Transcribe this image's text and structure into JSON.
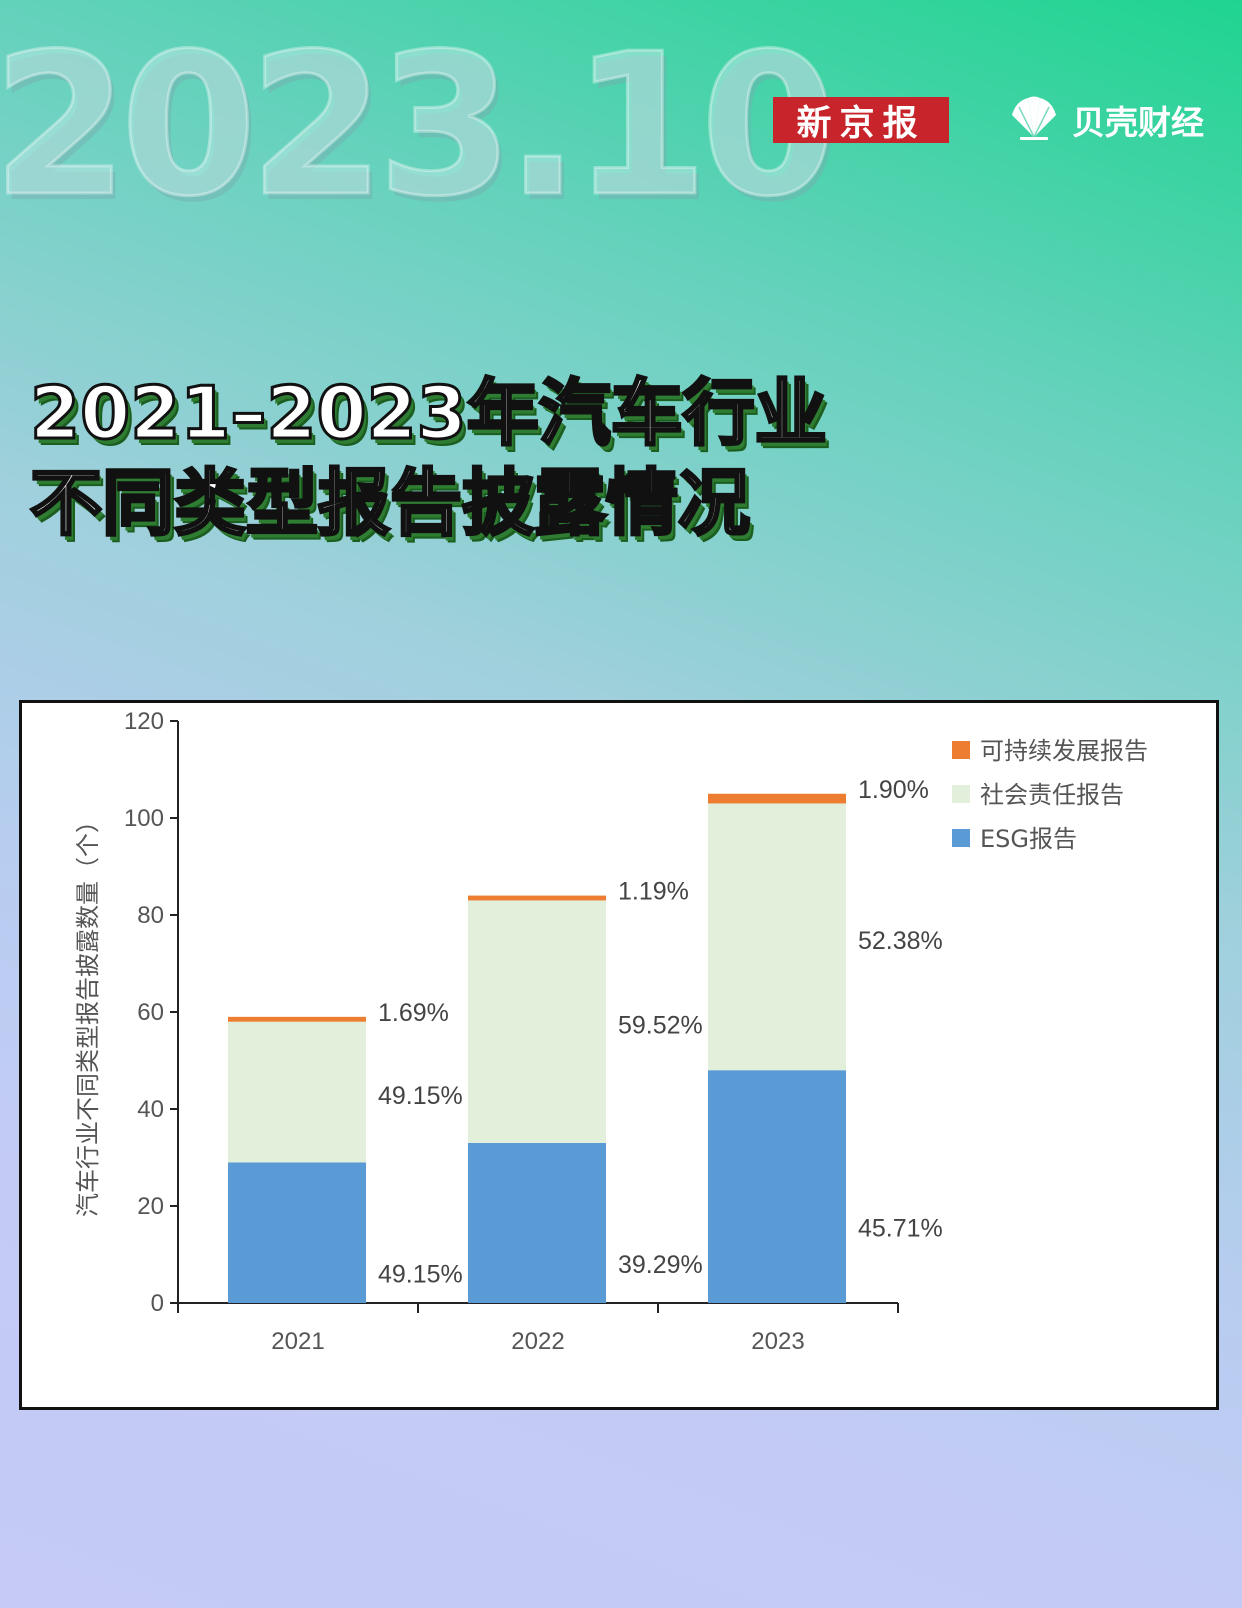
{
  "header": {
    "date_watermark": "2023.10",
    "logo_xinjingbao": "新京报",
    "logo_beike": "贝壳财经"
  },
  "title": {
    "line1": "2021–2023年汽车行业",
    "line2": "不同类型报告披露情况"
  },
  "colors": {
    "esg": "#5b9bd5",
    "social": "#e2efda",
    "sustainable": "#ed7d31"
  },
  "chart_data": {
    "type": "bar",
    "stacked": true,
    "categories": [
      "2021",
      "2022",
      "2023"
    ],
    "ylabel": "汽车行业不同类型报告披露数量（个）",
    "ylim": [
      0,
      120
    ],
    "yticks": [
      "0",
      "20",
      "40",
      "60",
      "80",
      "100",
      "120"
    ],
    "legend_position": "top-right",
    "series": [
      {
        "name": "ESG报告",
        "values": [
          29,
          33,
          48
        ],
        "labels": [
          "49.15%",
          "39.29%",
          "45.71%"
        ]
      },
      {
        "name": "社会责任报告",
        "values": [
          29,
          50,
          55
        ],
        "labels": [
          "49.15%",
          "59.52%",
          "52.38%"
        ]
      },
      {
        "name": "可持续发展报告",
        "values": [
          1,
          1,
          2
        ],
        "labels": [
          "1.69%",
          "1.19%",
          "1.90%"
        ]
      }
    ]
  }
}
